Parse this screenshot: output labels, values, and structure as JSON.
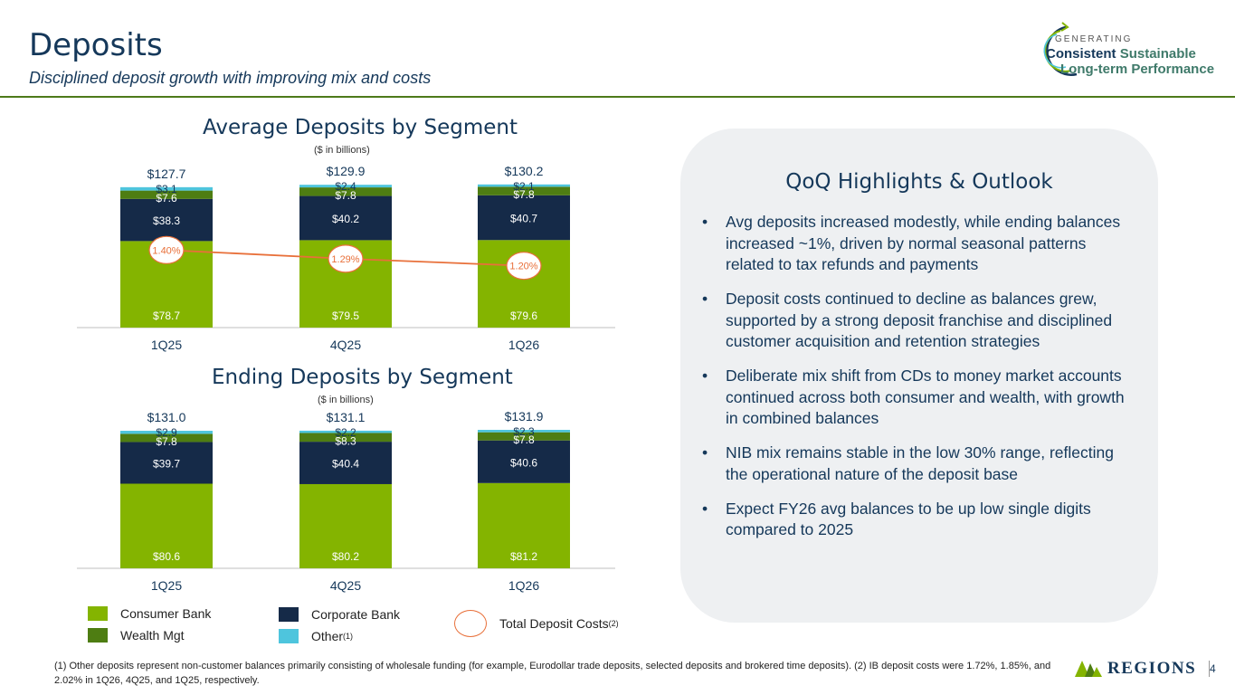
{
  "header": {
    "title": "Deposits",
    "subtitle": "Disciplined deposit growth with improving mix and costs"
  },
  "brand_badge": {
    "line1": "GENERATING",
    "line2a": "Consistent",
    "line2b": "Sustainable",
    "line3": "Long-term Performance"
  },
  "colors": {
    "consumer": "#84b400",
    "wealth": "#4e7d12",
    "corporate": "#152a48",
    "other": "#4ec5dd",
    "cost_line": "#e8703a",
    "navy": "#15385a"
  },
  "chart_data": [
    {
      "type": "bar",
      "stacked": true,
      "title": "Average Deposits by Segment",
      "subtitle": "($ in billions)",
      "categories": [
        "1Q25",
        "4Q25",
        "1Q26"
      ],
      "series": [
        {
          "name": "Consumer Bank",
          "values": [
            78.7,
            79.5,
            79.6
          ],
          "labels": [
            "$78.7",
            "$79.5",
            "$79.6"
          ]
        },
        {
          "name": "Corporate Bank",
          "values": [
            38.3,
            40.2,
            40.7
          ],
          "labels": [
            "$38.3",
            "$40.2",
            "$40.7"
          ]
        },
        {
          "name": "Wealth Mgt",
          "values": [
            7.6,
            7.8,
            7.8
          ],
          "labels": [
            "$7.6",
            "$7.8",
            "$7.8"
          ]
        },
        {
          "name": "Other",
          "values": [
            3.1,
            2.4,
            2.1
          ],
          "labels": [
            "$3.1",
            "$2.4",
            "$2.1"
          ]
        }
      ],
      "totals": [
        127.7,
        129.9,
        130.2
      ],
      "total_labels": [
        "$127.7",
        "$129.9",
        "$130.2"
      ],
      "line_series": {
        "name": "Total Deposit Costs",
        "values": [
          1.4,
          1.29,
          1.2
        ],
        "labels": [
          "1.40%",
          "1.29%",
          "1.20%"
        ]
      },
      "ylim": [
        0,
        135
      ]
    },
    {
      "type": "bar",
      "stacked": true,
      "title": "Ending Deposits by Segment",
      "subtitle": "($ in billions)",
      "categories": [
        "1Q25",
        "4Q25",
        "1Q26"
      ],
      "series": [
        {
          "name": "Consumer Bank",
          "values": [
            80.6,
            80.2,
            81.2
          ],
          "labels": [
            "$80.6",
            "$80.2",
            "$81.2"
          ]
        },
        {
          "name": "Corporate Bank",
          "values": [
            39.7,
            40.4,
            40.6
          ],
          "labels": [
            "$39.7",
            "$40.4",
            "$40.6"
          ]
        },
        {
          "name": "Wealth Mgt",
          "values": [
            7.8,
            8.3,
            7.8
          ],
          "labels": [
            "$7.8",
            "$8.3",
            "$7.8"
          ]
        },
        {
          "name": "Other",
          "values": [
            2.9,
            2.2,
            2.3
          ],
          "labels": [
            "$2.9",
            "$2.2",
            "$2.3"
          ]
        }
      ],
      "totals": [
        131.0,
        131.1,
        131.9
      ],
      "total_labels": [
        "$131.0",
        "$131.1",
        "$131.9"
      ],
      "ylim": [
        0,
        135
      ]
    }
  ],
  "legend": {
    "consumer": "Consumer Bank",
    "wealth": "Wealth Mgt",
    "corporate": "Corporate Bank",
    "other": "Other",
    "other_note": "(1)",
    "costs": "Total Deposit Costs",
    "costs_note": "(2)"
  },
  "highlights": {
    "title": "QoQ Highlights & Outlook",
    "bullets": [
      "Avg deposits increased modestly, while ending balances increased ~1%, driven by normal seasonal patterns related to tax refunds and payments",
      "Deposit costs continued to decline as balances grew, supported by a strong deposit franchise and disciplined customer acquisition and retention strategies",
      "Deliberate mix shift from CDs to money market accounts continued across both consumer and wealth, with growth in combined balances",
      "NIB mix remains stable in the low 30% range, reflecting the operational nature of the deposit base",
      "Expect FY26 avg balances to be up low single digits compared to 2025"
    ]
  },
  "footnote": "(1) Other deposits represent non-customer balances primarily consisting of wholesale funding (for example, Eurodollar trade deposits, selected deposits and brokered time deposits).  (2) IB deposit costs were 1.72%, 1.85%, and 2.02% in 1Q26, 4Q25, and 1Q25, respectively.",
  "brand": {
    "name": "REGIONS"
  },
  "page_number": "4"
}
